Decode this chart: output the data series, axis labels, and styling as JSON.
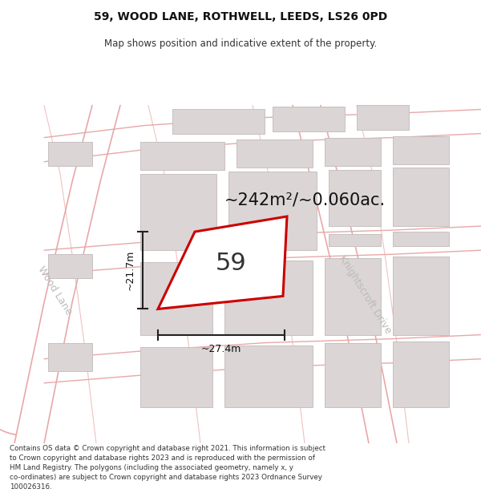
{
  "title_line1": "59, WOOD LANE, ROTHWELL, LEEDS, LS26 0PD",
  "title_line2": "Map shows position and indicative extent of the property.",
  "area_text": "~242m²/~0.060ac.",
  "label_59": "59",
  "dim_height": "~21.7m",
  "dim_width": "~27.4m",
  "street_wood_lane": "Wood Lane",
  "street_knightscroft": "Knightscroft Drive",
  "footer_text": "Contains OS data © Crown copyright and database right 2021. This information is subject\nto Crown copyright and database rights 2023 and is reproduced with the permission of\nHM Land Registry. The polygons (including the associated geometry, namely x, y\nco-ordinates) are subject to Crown copyright and database rights 2023 Ordnance Survey\n100026316.",
  "bg_color": "#ffffff",
  "map_bg": "#f7f2f2",
  "road_color": "#f0c0c0",
  "road_line_color": "#e8a8a8",
  "building_color": "#dbd5d5",
  "building_edge": "#c8c0c0",
  "plot_edge_color": "#cc0000",
  "plot_fill_color": "#ffffff",
  "dim_line_color": "#222222",
  "street_label_color": "#bbbbbb",
  "title_fontsize": 10,
  "subtitle_fontsize": 8.5,
  "area_fontsize": 15,
  "label_fontsize": 22,
  "dim_fontsize": 9,
  "street_fontsize": 9,
  "footer_fontsize": 6.3
}
